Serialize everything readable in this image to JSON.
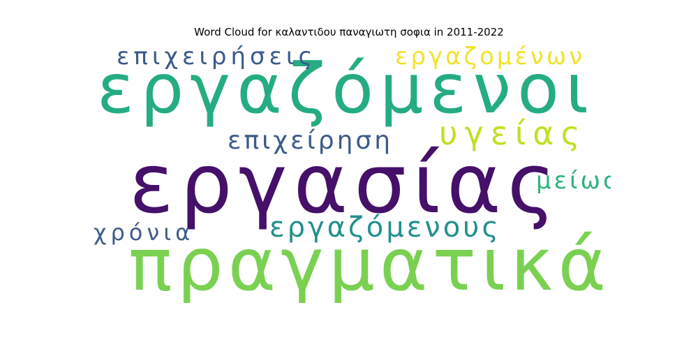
{
  "title": "Word Cloud for καλαντιδου παναγιωτη σοφια in 2011-2022",
  "words": [
    {
      "text": "εργαζόμενοι",
      "color": "#25ac82"
    },
    {
      "text": "εργασίας",
      "color": "#45106a"
    },
    {
      "text": "πραγματικά",
      "color": "#7ad151"
    },
    {
      "text": "επιχειρήσεις",
      "color": "#3b5a8b"
    },
    {
      "text": "εργαζομένων",
      "color": "#f2e22b"
    },
    {
      "text": "υγείας",
      "color": "#c2df23"
    },
    {
      "text": "επιχείρηση",
      "color": "#3b5b8a"
    },
    {
      "text": "μείωση",
      "color": "#2eb37c"
    },
    {
      "text": "εργαζόμενους",
      "color": "#22908c"
    },
    {
      "text": "χρόνια",
      "color": "#3f5c8a"
    }
  ]
}
